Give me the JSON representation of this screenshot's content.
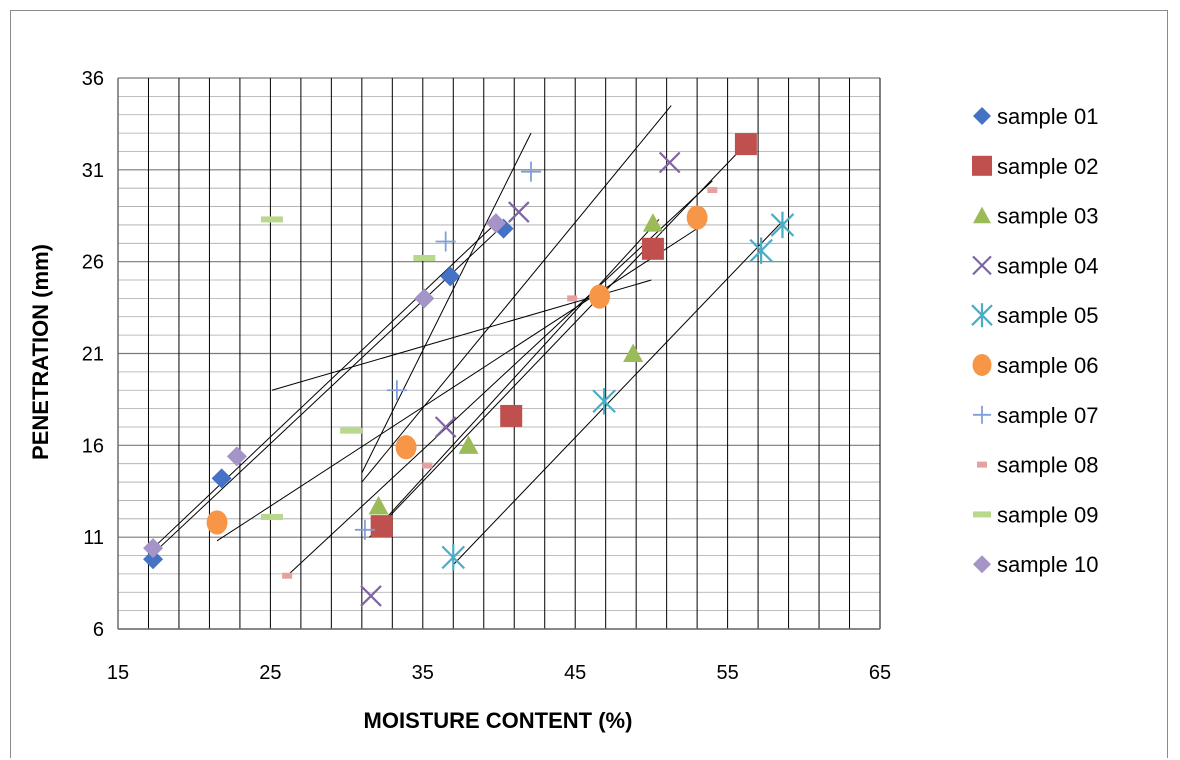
{
  "chart_data": {
    "type": "scatter",
    "title": "",
    "xlabel": "MOISTURE CONTENT (%)",
    "ylabel": "PENETRATION (mm)",
    "xlim": [
      15,
      65
    ],
    "ylim": [
      6,
      36
    ],
    "x_ticks": [
      15,
      25,
      35,
      45,
      55,
      65
    ],
    "y_ticks": [
      6,
      11,
      16,
      21,
      26,
      31,
      36
    ],
    "x_tick_labels": [
      "15",
      "25",
      "35",
      "45",
      "55",
      "65"
    ],
    "y_tick_labels": [
      "6",
      "11",
      "16",
      "21",
      "26",
      "31",
      "36"
    ],
    "grid": true,
    "legend_position": "right",
    "series": [
      {
        "name": "sample 01",
        "marker": "diamond",
        "color": "#4472C4",
        "points": [
          [
            17.3,
            9.8
          ],
          [
            21.8,
            14.2
          ],
          [
            36.8,
            25.2
          ],
          [
            40.3,
            27.8
          ]
        ],
        "trendline": [
          [
            17.3,
            10.1
          ],
          [
            40.3,
            28.0
          ]
        ]
      },
      {
        "name": "sample 02",
        "marker": "square",
        "color": "#C0504D",
        "points": [
          [
            32.3,
            11.6
          ],
          [
            40.8,
            17.6
          ],
          [
            50.1,
            26.7
          ],
          [
            56.2,
            32.4
          ]
        ],
        "trendline": [
          [
            31.5,
            11.0
          ],
          [
            56.2,
            32.4
          ]
        ]
      },
      {
        "name": "sample 03",
        "marker": "triangle",
        "color": "#9BBB59",
        "points": [
          [
            32.1,
            12.7
          ],
          [
            38.0,
            16.0
          ],
          [
            48.8,
            21.0
          ],
          [
            50.1,
            28.1
          ]
        ],
        "trendline": [
          [
            32.0,
            11.5
          ],
          [
            50.5,
            28.3
          ]
        ]
      },
      {
        "name": "sample 04",
        "marker": "x",
        "color": "#8064A2",
        "points": [
          [
            31.6,
            7.8
          ],
          [
            36.5,
            17.0
          ],
          [
            41.3,
            28.7
          ],
          [
            51.2,
            31.4
          ]
        ],
        "trendline": [
          [
            31.0,
            14.0
          ],
          [
            51.3,
            34.5
          ]
        ]
      },
      {
        "name": "sample 05",
        "marker": "asterisk",
        "color": "#4BACC6",
        "points": [
          [
            37.0,
            9.9
          ],
          [
            46.9,
            18.4
          ],
          [
            57.2,
            26.6
          ],
          [
            58.6,
            28.0
          ]
        ],
        "trendline": [
          [
            37.0,
            9.5
          ],
          [
            58.6,
            28.2
          ]
        ]
      },
      {
        "name": "sample 06",
        "marker": "circle",
        "color": "#F79646",
        "points": [
          [
            21.5,
            11.8
          ],
          [
            33.9,
            15.9
          ],
          [
            46.6,
            24.1
          ],
          [
            53.0,
            28.4
          ]
        ],
        "trendline": [
          [
            21.5,
            10.8
          ],
          [
            53.0,
            27.8
          ]
        ]
      },
      {
        "name": "sample 07",
        "marker": "plus",
        "color": "#7F9FD8",
        "points": [
          [
            31.2,
            11.4
          ],
          [
            33.3,
            19.0
          ],
          [
            36.5,
            27.1
          ],
          [
            42.1,
            30.9
          ]
        ],
        "trendline": [
          [
            31.0,
            14.5
          ],
          [
            42.1,
            33.0
          ]
        ]
      },
      {
        "name": "sample 08",
        "marker": "dash",
        "color": "#E6A0A0",
        "points": [
          [
            26.1,
            8.9
          ],
          [
            35.3,
            14.9
          ],
          [
            44.8,
            24.0
          ],
          [
            54.0,
            29.9
          ]
        ],
        "trendline": [
          [
            26.1,
            8.9
          ],
          [
            54.0,
            30.4
          ]
        ]
      },
      {
        "name": "sample 09",
        "marker": "dash",
        "color": "#B8D88B",
        "points": [
          [
            25.1,
            12.1
          ],
          [
            30.3,
            16.8
          ],
          [
            35.1,
            26.2
          ],
          [
            25.1,
            28.3
          ]
        ],
        "trendline": [
          [
            25.1,
            19.0
          ],
          [
            50.0,
            25.0
          ]
        ]
      },
      {
        "name": "sample 10",
        "marker": "diamond",
        "color": "#A594C7",
        "points": [
          [
            17.3,
            10.4
          ],
          [
            22.8,
            15.4
          ],
          [
            35.1,
            24.0
          ],
          [
            39.8,
            28.1
          ]
        ],
        "trendline": [
          [
            17.3,
            10.4
          ],
          [
            39.8,
            28.1
          ]
        ]
      }
    ]
  }
}
